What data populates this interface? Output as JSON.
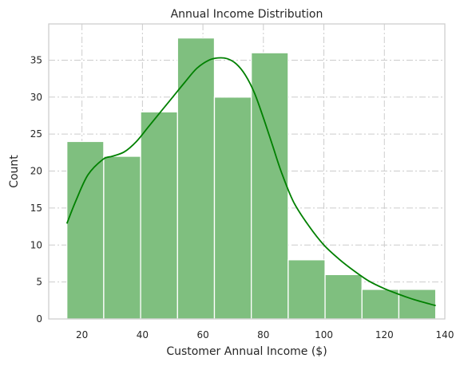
{
  "chart_data": {
    "type": "bar",
    "title": "Annual Income Distribution",
    "xlabel": "Customer Annual Income ($)",
    "ylabel": "Count",
    "xlim": [
      9,
      140
    ],
    "ylim": [
      0,
      39.9
    ],
    "xticks": [
      20,
      40,
      60,
      80,
      100,
      120,
      140
    ],
    "yticks": [
      0,
      5,
      10,
      15,
      20,
      25,
      30,
      35
    ],
    "grid": true,
    "bar_color": "#7fbf7f",
    "line_color": "#008000",
    "bins": [
      {
        "x0": 15.0,
        "x1": 27.2,
        "count": 24
      },
      {
        "x0": 27.2,
        "x1": 39.4,
        "count": 22
      },
      {
        "x0": 39.4,
        "x1": 51.6,
        "count": 28
      },
      {
        "x0": 51.6,
        "x1": 63.8,
        "count": 38
      },
      {
        "x0": 63.8,
        "x1": 76.0,
        "count": 30
      },
      {
        "x0": 76.0,
        "x1": 88.2,
        "count": 36
      },
      {
        "x0": 88.2,
        "x1": 100.4,
        "count": 8
      },
      {
        "x0": 100.4,
        "x1": 112.6,
        "count": 6
      },
      {
        "x0": 112.6,
        "x1": 124.8,
        "count": 4
      },
      {
        "x0": 124.8,
        "x1": 137.0,
        "count": 4
      }
    ],
    "kde": {
      "x": [
        15,
        18,
        22,
        27,
        30,
        34,
        38,
        42,
        46,
        50,
        54,
        58,
        62,
        65,
        68,
        71,
        74,
        77,
        80,
        83,
        86,
        90,
        95,
        100,
        105,
        110,
        115,
        120,
        125,
        130,
        137
      ],
      "y": [
        12.9,
        16.0,
        19.5,
        21.6,
        22.0,
        22.6,
        24.0,
        26.0,
        28.0,
        30.0,
        32.0,
        33.9,
        35.0,
        35.3,
        35.2,
        34.5,
        33.0,
        30.6,
        27.2,
        23.5,
        19.8,
        15.8,
        12.6,
        10.0,
        8.1,
        6.5,
        5.1,
        4.1,
        3.3,
        2.6,
        1.8
      ]
    }
  }
}
